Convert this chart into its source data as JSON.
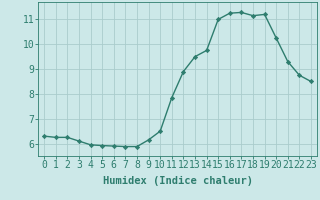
{
  "x": [
    0,
    1,
    2,
    3,
    4,
    5,
    6,
    7,
    8,
    9,
    10,
    11,
    12,
    13,
    14,
    15,
    16,
    17,
    18,
    19,
    20,
    21,
    22,
    23
  ],
  "y": [
    6.3,
    6.25,
    6.25,
    6.1,
    5.95,
    5.92,
    5.9,
    5.88,
    5.88,
    6.15,
    6.5,
    7.85,
    8.9,
    9.5,
    9.75,
    11.0,
    11.25,
    11.28,
    11.15,
    11.2,
    10.25,
    9.3,
    8.75,
    8.5
  ],
  "line_color": "#2e7d6e",
  "marker": "D",
  "marker_size": 2.2,
  "bg_color": "#cce8e8",
  "grid_color": "#aacccc",
  "xlabel": "Humidex (Indice chaleur)",
  "ylabel_ticks": [
    6,
    7,
    8,
    9,
    10,
    11
  ],
  "xlim": [
    -0.5,
    23.5
  ],
  "ylim": [
    5.5,
    11.7
  ],
  "tick_color": "#2e7d6e",
  "label_color": "#2e7d6e",
  "xlabel_fontsize": 7.5,
  "tick_fontsize": 7
}
